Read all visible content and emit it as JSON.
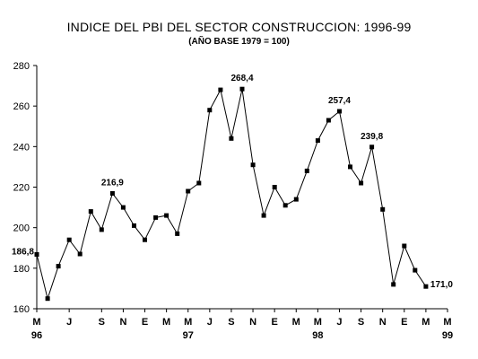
{
  "chart_data": {
    "type": "line",
    "title": "INDICE  DEL PBI DEL SECTOR CONSTRUCCION: 1996-99",
    "subtitle": "(AÑO BASE 1979 = 100)",
    "xlabel": "",
    "ylabel": "",
    "ylim": [
      160,
      280
    ],
    "yticks": [
      160,
      180,
      200,
      220,
      240,
      260,
      280
    ],
    "x_tick_labels": [
      {
        "index": 0,
        "label": "M",
        "year": "96"
      },
      {
        "index": 3,
        "label": "J"
      },
      {
        "index": 6,
        "label": "S"
      },
      {
        "index": 8,
        "label": "N"
      },
      {
        "index": 10,
        "label": "E"
      },
      {
        "index": 12,
        "label": "M"
      },
      {
        "index": 14,
        "label": "M",
        "year": "97"
      },
      {
        "index": 16,
        "label": "J"
      },
      {
        "index": 18,
        "label": "S"
      },
      {
        "index": 20,
        "label": "N"
      },
      {
        "index": 22,
        "label": "E"
      },
      {
        "index": 24,
        "label": "M"
      },
      {
        "index": 26,
        "label": "M",
        "year": "98"
      },
      {
        "index": 28,
        "label": "J"
      },
      {
        "index": 30,
        "label": "S"
      },
      {
        "index": 32,
        "label": "N"
      },
      {
        "index": 34,
        "label": "E"
      },
      {
        "index": 36,
        "label": "M"
      },
      {
        "index": 38,
        "label": "M",
        "year": "99"
      }
    ],
    "series": [
      {
        "values": [
          186.8,
          165,
          181,
          194,
          187,
          208,
          199,
          216.9,
          210,
          201,
          194,
          205,
          206,
          197,
          218,
          222,
          258,
          268,
          244,
          268.4,
          231,
          206,
          220,
          211,
          214,
          228,
          243,
          253,
          257.4,
          230,
          222,
          239.8,
          209,
          172,
          191,
          179,
          171.0
        ],
        "x_index": [
          0,
          1,
          2,
          3,
          4,
          5,
          6,
          7,
          8,
          9,
          10,
          11,
          12,
          13,
          14,
          15,
          16,
          17,
          18,
          19,
          20,
          21,
          22,
          23,
          24,
          25,
          26,
          27,
          28,
          29,
          30,
          31,
          32,
          33,
          34,
          35,
          36
        ]
      }
    ],
    "data_labels": [
      {
        "index": 0,
        "text": "186,8"
      },
      {
        "index": 7,
        "text": "216,9"
      },
      {
        "index": 19,
        "text": "268,4"
      },
      {
        "index": 28,
        "text": "257,4"
      },
      {
        "index": 31,
        "text": "239,8"
      },
      {
        "index": 36,
        "text": "171,0"
      }
    ],
    "grid": false,
    "line_color": "#000000",
    "marker": "square"
  }
}
